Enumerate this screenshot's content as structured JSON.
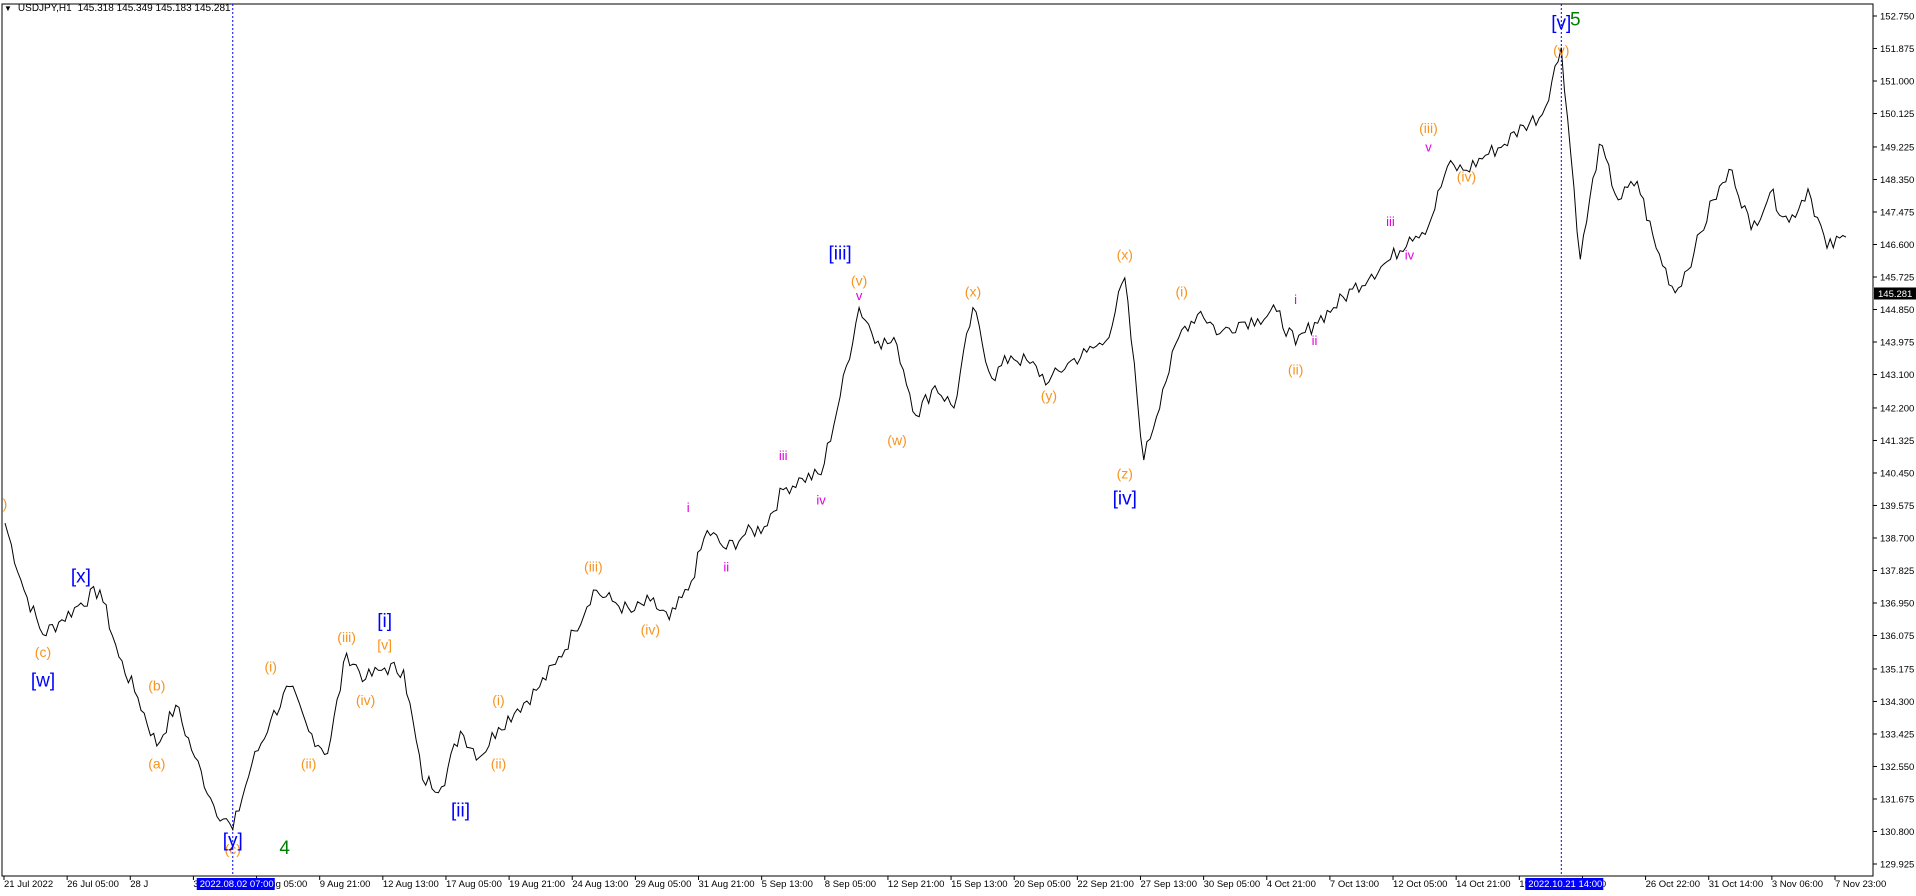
{
  "header": {
    "symbol": "USDJPY,H1",
    "ohlc": "145.318 145.349 145.183 145.281"
  },
  "colors": {
    "wave_minor": "#f7931e",
    "wave_minute": "#0000ff",
    "wave_sub": "#e000e0",
    "wave_primary": "#008000",
    "price_line": "#000000",
    "axis": "#000000",
    "cursor_line": "#0000ff",
    "highlight_bg": "#0000ff"
  },
  "chart_data": {
    "type": "line",
    "title": "USDJPY,H1",
    "y_ticks": [
      "152.750",
      "151.875",
      "151.000",
      "150.125",
      "149.225",
      "148.350",
      "147.475",
      "146.600",
      "145.725",
      "144.850",
      "143.975",
      "143.100",
      "142.200",
      "141.325",
      "140.450",
      "139.575",
      "138.700",
      "137.825",
      "136.950",
      "136.075",
      "135.175",
      "134.300",
      "133.425",
      "132.550",
      "131.675",
      "130.800",
      "129.925"
    ],
    "ylim": [
      129.925,
      152.75
    ],
    "current_price": "145.281",
    "x_ticks": [
      "21 Jul 2022",
      "26 Jul 05:00",
      "28 J",
      "3:00",
      "5 Aug 05:00",
      "9 Aug 21:00",
      "12 Aug 13:00",
      "17 Aug 05:00",
      "19 Aug 21:00",
      "24 Aug 13:00",
      "29 Aug 05:00",
      "31 Aug 21:00",
      "5 Sep 13:00",
      "8 Sep 05:00",
      "12 Sep 21:00",
      "15 Sep 13:00",
      "20 Sep 05:00",
      "22 Sep 21:00",
      "27 Sep 13:00",
      "30 Sep 05:00",
      "4 Oct 21:00",
      "7 Oct 13:00",
      "12 Oct 05:00",
      "14 Oct 21:00",
      "19",
      "05:00",
      "26 Oct 22:00",
      "31 Oct 14:00",
      "3 Nov 06:00",
      "7 Nov 23:00"
    ],
    "highlighted_x_labels": [
      "2022.08.02 07:00",
      "2022.10.21 14:00"
    ],
    "price_points": [
      {
        "x": "21 Jul 2022",
        "y": 139.1
      },
      {
        "x": "21 Jul",
        "y": 137.3
      },
      {
        "x": "22 Jul",
        "y": 136.1
      },
      {
        "x": "25 Jul",
        "y": 136.5
      },
      {
        "x": "26 Jul 05:00",
        "y": 136.95
      },
      {
        "x": "26 Jul",
        "y": 137.3
      },
      {
        "x": "27 Jul",
        "y": 135.5
      },
      {
        "x": "27 Jul",
        "y": 134.4
      },
      {
        "x": "28 Jul",
        "y": 133.1
      },
      {
        "x": "28 Jul",
        "y": 134.2
      },
      {
        "x": "29 Jul",
        "y": 132.8
      },
      {
        "x": "1 Aug",
        "y": 131.5
      },
      {
        "x": "2 Aug 07:00",
        "y": 130.85
      },
      {
        "x": "2 Aug",
        "y": 132.6
      },
      {
        "x": "3 Aug",
        "y": 133.8
      },
      {
        "x": "3 Aug",
        "y": 134.7
      },
      {
        "x": "4 Aug",
        "y": 133.5
      },
      {
        "x": "4 Aug",
        "y": 132.9
      },
      {
        "x": "5 Aug",
        "y": 135.6
      },
      {
        "x": "8 Aug",
        "y": 134.9
      },
      {
        "x": "9 Aug",
        "y": 135.2
      },
      {
        "x": "9 Aug 21:00",
        "y": 135.15
      },
      {
        "x": "10 Aug",
        "y": 132.2
      },
      {
        "x": "10 Aug",
        "y": 132.0
      },
      {
        "x": "11 Aug",
        "y": 133.5
      },
      {
        "x": "11 Aug",
        "y": 132.8
      },
      {
        "x": "12 Aug",
        "y": 133.6
      },
      {
        "x": "15 Aug",
        "y": 134.1
      },
      {
        "x": "16 Aug",
        "y": 134.6
      },
      {
        "x": "17 Aug",
        "y": 135.3
      },
      {
        "x": "18 Aug",
        "y": 136.2
      },
      {
        "x": "19 Aug",
        "y": 137.3
      },
      {
        "x": "22 Aug",
        "y": 137.0
      },
      {
        "x": "23 Aug",
        "y": 136.7
      },
      {
        "x": "24 Aug",
        "y": 137.0
      },
      {
        "x": "25 Aug",
        "y": 136.5
      },
      {
        "x": "26 Aug",
        "y": 137.3
      },
      {
        "x": "29 Aug",
        "y": 138.9
      },
      {
        "x": "30 Aug",
        "y": 138.4
      },
      {
        "x": "30 Aug",
        "y": 138.8
      },
      {
        "x": "31 Aug",
        "y": 139.0
      },
      {
        "x": "1 Sep",
        "y": 140.0
      },
      {
        "x": "2 Sep",
        "y": 140.3
      },
      {
        "x": "5 Sep",
        "y": 140.4
      },
      {
        "x": "6 Sep",
        "y": 142.5
      },
      {
        "x": "7 Sep",
        "y": 144.9
      },
      {
        "x": "7 Sep",
        "y": 144.0
      },
      {
        "x": "8 Sep",
        "y": 143.9
      },
      {
        "x": "8 Sep",
        "y": 142.0
      },
      {
        "x": "9 Sep",
        "y": 142.8
      },
      {
        "x": "12 Sep",
        "y": 142.2
      },
      {
        "x": "13 Sep",
        "y": 144.9
      },
      {
        "x": "13 Sep",
        "y": 143.0
      },
      {
        "x": "14 Sep",
        "y": 143.6
      },
      {
        "x": "15 Sep",
        "y": 143.4
      },
      {
        "x": "16 Sep",
        "y": 142.9
      },
      {
        "x": "19 Sep",
        "y": 143.4
      },
      {
        "x": "20 Sep",
        "y": 143.7
      },
      {
        "x": "21 Sep",
        "y": 144.0
      },
      {
        "x": "22 Sep",
        "y": 145.7
      },
      {
        "x": "22 Sep",
        "y": 140.8
      },
      {
        "x": "23 Sep",
        "y": 142.7
      },
      {
        "x": "26 Sep",
        "y": 144.3
      },
      {
        "x": "27 Sep",
        "y": 144.8
      },
      {
        "x": "28 Sep",
        "y": 144.2
      },
      {
        "x": "29 Sep",
        "y": 144.5
      },
      {
        "x": "30 Sep",
        "y": 144.6
      },
      {
        "x": "3 Oct",
        "y": 144.8
      },
      {
        "x": "4 Oct",
        "y": 143.9
      },
      {
        "x": "5 Oct",
        "y": 144.5
      },
      {
        "x": "6 Oct",
        "y": 144.9
      },
      {
        "x": "7 Oct",
        "y": 145.4
      },
      {
        "x": "10 Oct",
        "y": 145.8
      },
      {
        "x": "11 Oct",
        "y": 146.2
      },
      {
        "x": "12 Oct",
        "y": 146.8
      },
      {
        "x": "13 Oct",
        "y": 147.1
      },
      {
        "x": "13 Oct",
        "y": 148.7
      },
      {
        "x": "14 Oct",
        "y": 148.6
      },
      {
        "x": "17 Oct",
        "y": 149.0
      },
      {
        "x": "18 Oct",
        "y": 149.3
      },
      {
        "x": "19 Oct",
        "y": 149.8
      },
      {
        "x": "20 Oct",
        "y": 150.1
      },
      {
        "x": "21 Oct 14:00",
        "y": 151.9
      },
      {
        "x": "21 Oct",
        "y": 146.2
      },
      {
        "x": "24 Oct",
        "y": 149.3
      },
      {
        "x": "24 Oct",
        "y": 147.8
      },
      {
        "x": "25 Oct",
        "y": 148.3
      },
      {
        "x": "26 Oct",
        "y": 146.5
      },
      {
        "x": "27 Oct",
        "y": 145.3
      },
      {
        "x": "28 Oct",
        "y": 146.4
      },
      {
        "x": "31 Oct",
        "y": 147.8
      },
      {
        "x": "1 Nov",
        "y": 148.6
      },
      {
        "x": "2 Nov",
        "y": 147.0
      },
      {
        "x": "2 Nov",
        "y": 148.0
      },
      {
        "x": "3 Nov",
        "y": 147.2
      },
      {
        "x": "4 Nov",
        "y": 148.1
      },
      {
        "x": "7 Nov",
        "y": 146.5
      },
      {
        "x": "7 Nov 23:00",
        "y": 146.8
      }
    ],
    "annotations": [
      {
        "text": ")",
        "group": "minor",
        "x": "21 Jul 2022",
        "y": 139.5
      },
      {
        "text": "(c)",
        "group": "minor",
        "x": "22 Jul",
        "y": 135.5
      },
      {
        "text": "[w]",
        "group": "minute",
        "x": "22 Jul",
        "y": 134.7
      },
      {
        "text": "[x]",
        "group": "minute",
        "x": "26 Jul",
        "y": 137.5
      },
      {
        "text": "(b)",
        "group": "minor",
        "x": "28 Jul",
        "y": 134.6
      },
      {
        "text": "(a)",
        "group": "minor",
        "x": "28 Jul",
        "y": 132.5
      },
      {
        "text": "(c)",
        "group": "minor",
        "x": "2 Aug",
        "y": 130.2
      },
      {
        "text": "[y]",
        "group": "minute",
        "x": "2 Aug",
        "y": 130.4
      },
      {
        "text": "4",
        "group": "primary",
        "x": "3 Aug",
        "y": 130.2
      },
      {
        "text": "(i)",
        "group": "minor",
        "x": "3 Aug",
        "y": 135.1
      },
      {
        "text": "(ii)",
        "group": "minor",
        "x": "4 Aug",
        "y": 132.5
      },
      {
        "text": "(iii)",
        "group": "minor",
        "x": "5 Aug",
        "y": 135.9
      },
      {
        "text": "(iv)",
        "group": "minor",
        "x": "8 Aug",
        "y": 134.2
      },
      {
        "text": "[v]",
        "group": "minor",
        "x": "9 Aug",
        "y": 135.7
      },
      {
        "text": "[i]",
        "group": "minute",
        "x": "9 Aug",
        "y": 136.3
      },
      {
        "text": "[ii]",
        "group": "minute",
        "x": "11 Aug",
        "y": 131.2
      },
      {
        "text": "(i)",
        "group": "minor",
        "x": "12 Aug",
        "y": 134.2
      },
      {
        "text": "(ii)",
        "group": "minor",
        "x": "12 Aug",
        "y": 132.5
      },
      {
        "text": "(iii)",
        "group": "minor",
        "x": "19 Aug",
        "y": 137.8
      },
      {
        "text": "(iv)",
        "group": "minor",
        "x": "24 Aug",
        "y": 136.1
      },
      {
        "text": "i",
        "group": "sub",
        "x": "26 Aug",
        "y": 139.4
      },
      {
        "text": "ii",
        "group": "sub",
        "x": "30 Aug",
        "y": 137.8
      },
      {
        "text": "iii",
        "group": "sub",
        "x": "1 Sep",
        "y": 140.8
      },
      {
        "text": "iv",
        "group": "sub",
        "x": "5 Sep",
        "y": 139.6
      },
      {
        "text": "[iii]",
        "group": "minute",
        "x": "6 Sep",
        "y": 146.2
      },
      {
        "text": "(v)",
        "group": "minor",
        "x": "7 Sep",
        "y": 145.5
      },
      {
        "text": "v",
        "group": "sub",
        "x": "7 Sep",
        "y": 145.1
      },
      {
        "text": "(w)",
        "group": "minor",
        "x": "8 Sep",
        "y": 141.2
      },
      {
        "text": "(x)",
        "group": "minor",
        "x": "13 Sep",
        "y": 145.2
      },
      {
        "text": "(y)",
        "group": "minor",
        "x": "16 Sep",
        "y": 142.4
      },
      {
        "text": "(x)",
        "group": "minor",
        "x": "22 Sep",
        "y": 146.2
      },
      {
        "text": "(z)",
        "group": "minor",
        "x": "22 Sep",
        "y": 140.3
      },
      {
        "text": "[iv]",
        "group": "minute",
        "x": "22 Sep",
        "y": 139.6
      },
      {
        "text": "(i)",
        "group": "minor",
        "x": "26 Sep",
        "y": 145.2
      },
      {
        "text": "i",
        "group": "sub",
        "x": "4 Oct",
        "y": 145.0
      },
      {
        "text": "ii",
        "group": "sub",
        "x": "5 Oct",
        "y": 143.9
      },
      {
        "text": "(ii)",
        "group": "minor",
        "x": "4 Oct",
        "y": 143.1
      },
      {
        "text": "iii",
        "group": "sub",
        "x": "11 Oct",
        "y": 147.1
      },
      {
        "text": "iv",
        "group": "sub",
        "x": "12 Oct",
        "y": 146.2
      },
      {
        "text": "(iii)",
        "group": "minor",
        "x": "13 Oct",
        "y": 149.6
      },
      {
        "text": "v",
        "group": "sub",
        "x": "13 Oct",
        "y": 149.1
      },
      {
        "text": "(iv)",
        "group": "minor",
        "x": "14 Oct",
        "y": 148.3
      },
      {
        "text": "[v]",
        "group": "minute",
        "x": "21 Oct",
        "y": 152.4
      },
      {
        "text": "5",
        "group": "primary",
        "x": "21 Oct",
        "y": 152.5
      },
      {
        "text": "(v)",
        "group": "minor",
        "x": "21 Oct",
        "y": 151.7
      }
    ]
  }
}
